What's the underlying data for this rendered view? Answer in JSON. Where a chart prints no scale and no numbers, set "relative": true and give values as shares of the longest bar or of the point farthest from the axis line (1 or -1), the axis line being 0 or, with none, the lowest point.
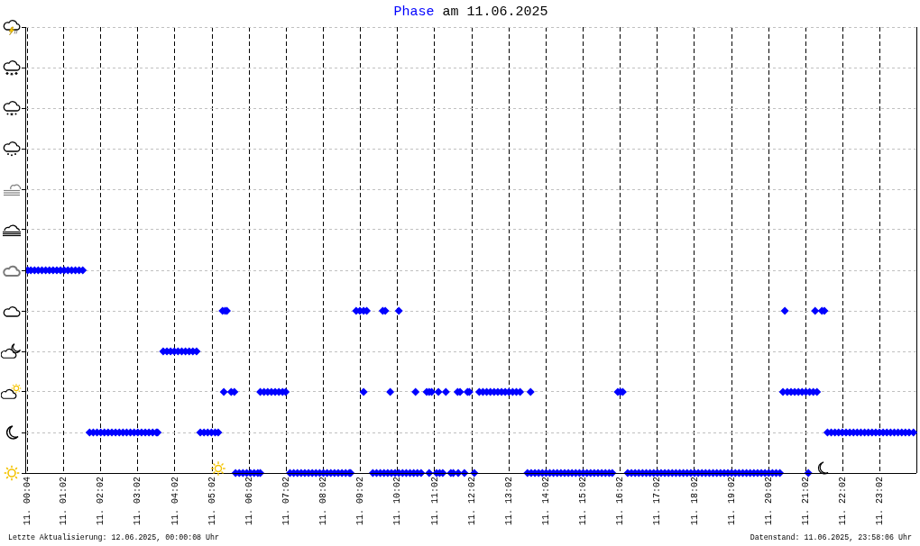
{
  "chart_data": {
    "type": "scatter",
    "title": "Phase am 11.06.2025",
    "relative": true,
    "x": [
      "2025-06-11T00:04",
      "2025-06-11T00:09",
      "2025-06-11T00:15",
      "2025-06-11T00:21",
      "2025-06-11T00:27",
      "2025-06-11T00:33",
      "2025-06-11T00:39",
      "2025-06-11T00:45",
      "2025-06-11T00:51",
      "2025-06-11T00:57",
      "2025-06-11T01:03",
      "2025-06-11T01:09",
      "2025-06-11T01:15",
      "2025-06-11T01:21",
      "2025-06-11T01:27",
      "2025-06-11T01:33",
      "2025-06-11T01:44",
      "2025-06-11T01:50",
      "2025-06-11T01:56",
      "2025-06-11T02:02",
      "2025-06-11T02:08",
      "2025-06-11T02:14",
      "2025-06-11T02:20",
      "2025-06-11T02:26",
      "2025-06-11T02:32",
      "2025-06-11T02:38",
      "2025-06-11T02:44",
      "2025-06-11T02:50",
      "2025-06-11T02:56",
      "2025-06-11T03:02",
      "2025-06-11T03:08",
      "2025-06-11T03:14",
      "2025-06-11T03:20",
      "2025-06-11T03:26",
      "2025-06-11T03:32",
      "2025-06-11T03:34",
      "2025-06-11T03:43",
      "2025-06-11T03:49",
      "2025-06-11T03:55",
      "2025-06-11T04:01",
      "2025-06-11T04:07",
      "2025-06-11T04:13",
      "2025-06-11T04:19",
      "2025-06-11T04:25",
      "2025-06-11T04:31",
      "2025-06-11T04:37",
      "2025-06-11T04:43",
      "2025-06-11T04:49",
      "2025-06-11T04:55",
      "2025-06-11T05:01",
      "2025-06-11T05:07",
      "2025-06-11T05:12",
      "2025-06-11T05:19",
      "2025-06-11T05:23",
      "2025-06-11T05:26",
      "2025-06-11T05:21",
      "2025-06-11T05:33",
      "2025-06-11T05:38",
      "2025-06-11T05:40",
      "2025-06-11T05:46",
      "2025-06-11T05:52",
      "2025-06-11T05:58",
      "2025-06-11T06:04",
      "2025-06-11T06:10",
      "2025-06-11T06:16",
      "2025-06-11T06:20",
      "2025-06-11T06:20",
      "2025-06-11T06:26",
      "2025-06-11T06:32",
      "2025-06-11T06:38",
      "2025-06-11T06:44",
      "2025-06-11T06:50",
      "2025-06-11T06:56",
      "2025-06-11T07:01",
      "2025-06-11T07:08",
      "2025-06-11T07:14",
      "2025-06-11T07:20",
      "2025-06-11T07:26",
      "2025-06-11T07:32",
      "2025-06-11T07:38",
      "2025-06-11T07:44",
      "2025-06-11T07:50",
      "2025-06-11T07:56",
      "2025-06-11T08:02",
      "2025-06-11T08:08",
      "2025-06-11T08:14",
      "2025-06-11T08:20",
      "2025-06-11T08:26",
      "2025-06-11T08:32",
      "2025-06-11T08:38",
      "2025-06-11T08:44",
      "2025-06-11T08:46",
      "2025-06-11T08:55",
      "2025-06-11T09:01",
      "2025-06-11T09:07",
      "2025-06-11T09:12",
      "2025-06-11T09:07",
      "2025-06-11T09:22",
      "2025-06-11T09:28",
      "2025-06-11T09:34",
      "2025-06-11T09:40",
      "2025-06-11T09:46",
      "2025-06-11T09:52",
      "2025-06-11T09:58",
      "2025-06-11T10:04",
      "2025-06-11T10:10",
      "2025-06-11T10:16",
      "2025-06-11T10:22",
      "2025-06-11T10:28",
      "2025-06-11T10:34",
      "2025-06-11T10:40",
      "2025-06-11T09:38",
      "2025-06-11T09:42",
      "2025-06-11T10:04",
      "2025-06-11T09:50",
      "2025-06-11T10:31",
      "2025-06-11T10:49",
      "2025-06-11T10:53",
      "2025-06-11T10:57",
      "2025-06-11T10:53",
      "2025-06-11T11:05",
      "2025-06-11T11:10",
      "2025-06-11T11:15",
      "2025-06-11T11:08",
      "2025-06-11T11:20",
      "2025-06-11T11:28",
      "2025-06-11T11:32",
      "2025-06-11T11:39",
      "2025-06-11T11:43",
      "2025-06-11T11:40",
      "2025-06-11T11:50",
      "2025-06-11T11:55",
      "2025-06-11T11:58",
      "2025-06-11T12:06",
      "2025-06-11T12:14",
      "2025-06-11T12:20",
      "2025-06-11T12:26",
      "2025-06-11T12:32",
      "2025-06-11T12:38",
      "2025-06-11T12:44",
      "2025-06-11T12:50",
      "2025-06-11T12:56",
      "2025-06-11T13:02",
      "2025-06-11T13:08",
      "2025-06-11T13:14",
      "2025-06-11T13:20",
      "2025-06-11T13:37",
      "2025-06-11T13:32",
      "2025-06-11T13:38",
      "2025-06-11T13:44",
      "2025-06-11T13:50",
      "2025-06-11T13:56",
      "2025-06-11T14:02",
      "2025-06-11T14:08",
      "2025-06-11T14:14",
      "2025-06-11T14:20",
      "2025-06-11T14:26",
      "2025-06-11T14:32",
      "2025-06-11T14:38",
      "2025-06-11T14:44",
      "2025-06-11T14:50",
      "2025-06-11T14:56",
      "2025-06-11T15:02",
      "2025-06-11T15:08",
      "2025-06-11T15:14",
      "2025-06-11T15:20",
      "2025-06-11T15:26",
      "2025-06-11T15:32",
      "2025-06-11T15:38",
      "2025-06-11T15:44",
      "2025-06-11T15:49",
      "2025-06-11T15:58",
      "2025-06-11T16:02",
      "2025-06-11T16:06",
      "2025-06-11T16:14",
      "2025-06-11T16:20",
      "2025-06-11T16:26",
      "2025-06-11T16:32",
      "2025-06-11T16:38",
      "2025-06-11T16:44",
      "2025-06-11T16:50",
      "2025-06-11T16:56",
      "2025-06-11T17:02",
      "2025-06-11T17:08",
      "2025-06-11T17:14",
      "2025-06-11T17:20",
      "2025-06-11T17:26",
      "2025-06-11T17:32",
      "2025-06-11T17:38",
      "2025-06-11T17:44",
      "2025-06-11T17:50",
      "2025-06-11T17:56",
      "2025-06-11T18:02",
      "2025-06-11T18:08",
      "2025-06-11T18:14",
      "2025-06-11T18:20",
      "2025-06-11T18:26",
      "2025-06-11T18:32",
      "2025-06-11T18:38",
      "2025-06-11T18:44",
      "2025-06-11T18:50",
      "2025-06-11T18:56",
      "2025-06-11T19:02",
      "2025-06-11T19:08",
      "2025-06-11T19:14",
      "2025-06-11T19:20",
      "2025-06-11T19:26",
      "2025-06-11T19:32",
      "2025-06-11T19:38",
      "2025-06-11T19:44",
      "2025-06-11T19:50",
      "2025-06-11T19:56",
      "2025-06-11T20:02",
      "2025-06-11T20:08",
      "2025-06-11T20:14",
      "2025-06-11T20:20",
      "2025-06-11T20:25",
      "2025-06-11T20:32",
      "2025-06-11T20:38",
      "2025-06-11T20:44",
      "2025-06-11T20:50",
      "2025-06-11T20:56",
      "2025-06-11T21:02",
      "2025-06-11T21:08",
      "2025-06-11T21:14",
      "2025-06-11T21:20",
      "2025-06-11T20:28",
      "2025-06-11T21:17",
      "2025-06-11T21:28",
      "2025-06-11T21:32",
      "2025-06-11T21:06",
      "2025-06-11T21:37",
      "2025-06-11T21:43",
      "2025-06-11T21:49",
      "2025-06-11T21:55",
      "2025-06-11T22:01",
      "2025-06-11T22:07",
      "2025-06-11T22:13",
      "2025-06-11T22:19",
      "2025-06-11T22:25",
      "2025-06-11T22:31",
      "2025-06-11T22:37",
      "2025-06-11T22:43",
      "2025-06-11T22:49",
      "2025-06-11T22:55",
      "2025-06-11T23:01",
      "2025-06-11T23:07",
      "2025-06-11T23:13",
      "2025-06-11T23:19",
      "2025-06-11T23:25",
      "2025-06-11T23:31",
      "2025-06-11T23:37",
      "2025-06-11T23:43",
      "2025-06-11T23:49",
      "2025-06-11T23:56"
    ],
    "values": [
      1,
      1,
      1,
      1,
      1,
      1,
      1,
      1,
      1,
      1,
      1,
      1,
      1,
      1,
      1,
      1,
      0.2,
      0.2,
      0.2,
      0.2,
      0.2,
      0.2,
      0.2,
      0.2,
      0.2,
      0.2,
      0.2,
      0.2,
      0.2,
      0.2,
      0.2,
      0.2,
      0.2,
      0.2,
      0.2,
      0.2,
      0.6,
      0.6,
      0.6,
      0.6,
      0.6,
      0.6,
      0.6,
      0.6,
      0.6,
      0.6,
      0.2,
      0.2,
      0.2,
      0.2,
      0.2,
      0.2,
      0.8,
      0.8,
      0.8,
      0.4,
      0.4,
      0.4,
      0,
      0,
      0,
      0,
      0,
      0,
      0,
      0,
      0.4,
      0.4,
      0.4,
      0.4,
      0.4,
      0.4,
      0.4,
      0.4,
      0,
      0,
      0,
      0,
      0,
      0,
      0,
      0,
      0,
      0,
      0,
      0,
      0,
      0,
      0,
      0,
      0,
      0,
      0.8,
      0.8,
      0.8,
      0.8,
      0.4,
      0,
      0,
      0,
      0,
      0,
      0,
      0,
      0,
      0,
      0,
      0,
      0,
      0,
      0,
      0.8,
      0.8,
      0.8,
      0.4,
      0.4,
      0.4,
      0.4,
      0.4,
      0,
      0,
      0,
      0,
      0.4,
      0.4,
      0,
      0,
      0.4,
      0.4,
      0,
      0,
      0.4,
      0.4,
      0,
      0.4,
      0.4,
      0.4,
      0.4,
      0.4,
      0.4,
      0.4,
      0.4,
      0.4,
      0.4,
      0.4,
      0.4,
      0.4,
      0,
      0,
      0,
      0,
      0,
      0,
      0,
      0,
      0,
      0,
      0,
      0,
      0,
      0,
      0,
      0,
      0,
      0,
      0,
      0,
      0,
      0,
      0,
      0,
      0.4,
      0.4,
      0.4,
      0,
      0,
      0,
      0,
      0,
      0,
      0,
      0,
      0,
      0,
      0,
      0,
      0,
      0,
      0,
      0,
      0,
      0,
      0,
      0,
      0,
      0,
      0,
      0,
      0,
      0,
      0,
      0,
      0,
      0,
      0,
      0,
      0,
      0,
      0,
      0,
      0,
      0,
      0,
      0,
      0,
      0,
      0.4,
      0.4,
      0.4,
      0.4,
      0.4,
      0.4,
      0.4,
      0.4,
      0.4,
      0.4,
      0.8,
      0.8,
      0.8,
      0.8,
      0,
      0.2,
      0.2,
      0.2,
      0.2,
      0.2,
      0.2,
      0.2,
      0.2,
      0.2,
      0.2,
      0.2,
      0.2,
      0.2,
      0.2,
      0.2,
      0.2,
      0.2,
      0.2,
      0.2,
      0.2,
      0.2,
      0.2,
      0.2,
      0.2
    ],
    "color": "#0000ff",
    "marker": "diamond",
    "xlim": [
      "2025-06-11T00:00",
      "2025-06-12T00:00"
    ],
    "xticks": [
      {
        "value": "2025-06-11T00:04",
        "label": "11. 00:04"
      },
      {
        "value": "2025-06-11T01:02",
        "label": "11. 01:02"
      },
      {
        "value": "2025-06-11T02:02",
        "label": "11. 02:02"
      },
      {
        "value": "2025-06-11T03:02",
        "label": "11. 03:02"
      },
      {
        "value": "2025-06-11T04:02",
        "label": "11. 04:02"
      },
      {
        "value": "2025-06-11T05:02",
        "label": "11. 05:02"
      },
      {
        "value": "2025-06-11T06:02",
        "label": "11. 06:02"
      },
      {
        "value": "2025-06-11T07:02",
        "label": "11. 07:02"
      },
      {
        "value": "2025-06-11T08:02",
        "label": "11. 08:02"
      },
      {
        "value": "2025-06-11T09:02",
        "label": "11. 09:02"
      },
      {
        "value": "2025-06-11T10:02",
        "label": "11. 10:02"
      },
      {
        "value": "2025-06-11T11:02",
        "label": "11. 11:02"
      },
      {
        "value": "2025-06-11T12:02",
        "label": "11. 12:02"
      },
      {
        "value": "2025-06-11T13:02",
        "label": "11. 13:02"
      },
      {
        "value": "2025-06-11T14:02",
        "label": "11. 14:02"
      },
      {
        "value": "2025-06-11T15:02",
        "label": "11. 15:02"
      },
      {
        "value": "2025-06-11T16:02",
        "label": "11. 16:02"
      },
      {
        "value": "2025-06-11T17:02",
        "label": "11. 17:02"
      },
      {
        "value": "2025-06-11T18:02",
        "label": "11. 18:02"
      },
      {
        "value": "2025-06-11T19:02",
        "label": "11. 19:02"
      },
      {
        "value": "2025-06-11T20:02",
        "label": "11. 20:02"
      },
      {
        "value": "2025-06-11T21:02",
        "label": "11. 21:02"
      },
      {
        "value": "2025-06-11T22:02",
        "label": "11. 22:02"
      },
      {
        "value": "2025-06-11T23:02",
        "label": "11. 23:02"
      }
    ],
    "tick_labels": "x",
    "grid": true,
    "annotations": [
      "Letzte Aktualisierung: 12.06.2025, 00:00:08 Uhr",
      "Datenstand: 11.06.2025, 23:58:06 Uhr"
    ]
  }
}
